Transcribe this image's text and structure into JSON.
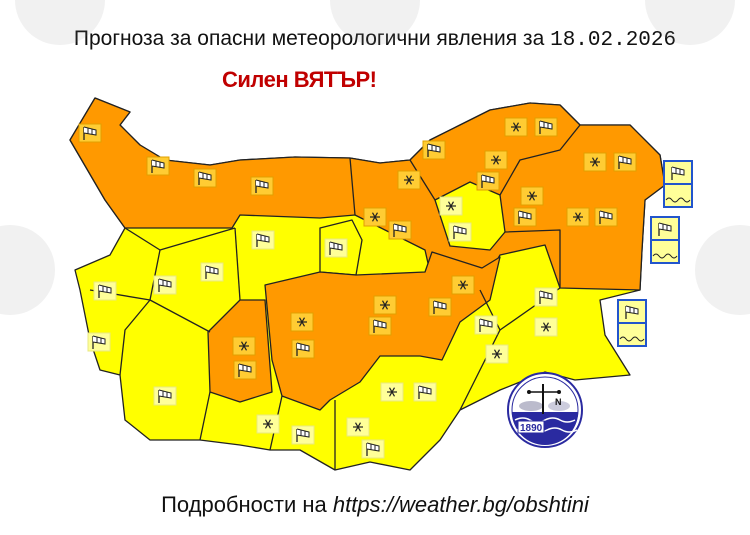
{
  "header": {
    "title": "Прогноза за опасни метеорологични явления за",
    "date": "18.02.2026",
    "subtitle": "Силен ВЯТЪР!"
  },
  "footer": {
    "prefix": "Подробности на",
    "link": "https://weather.bg/obshtini"
  },
  "logo": {
    "year": "1890",
    "compass_letter": "N"
  },
  "colors": {
    "orange_warning": "#ff9900",
    "yellow_warning": "#ffff00",
    "sea_box_border": "#2255cc",
    "subtitle": "#c00000",
    "logo_blue": "#2a2aa0"
  },
  "warning_levels": [
    "yellow",
    "orange"
  ],
  "icon_types": {
    "wind": "windsock-icon",
    "snow": "snowflake-icon",
    "waves": "waves-icon"
  }
}
